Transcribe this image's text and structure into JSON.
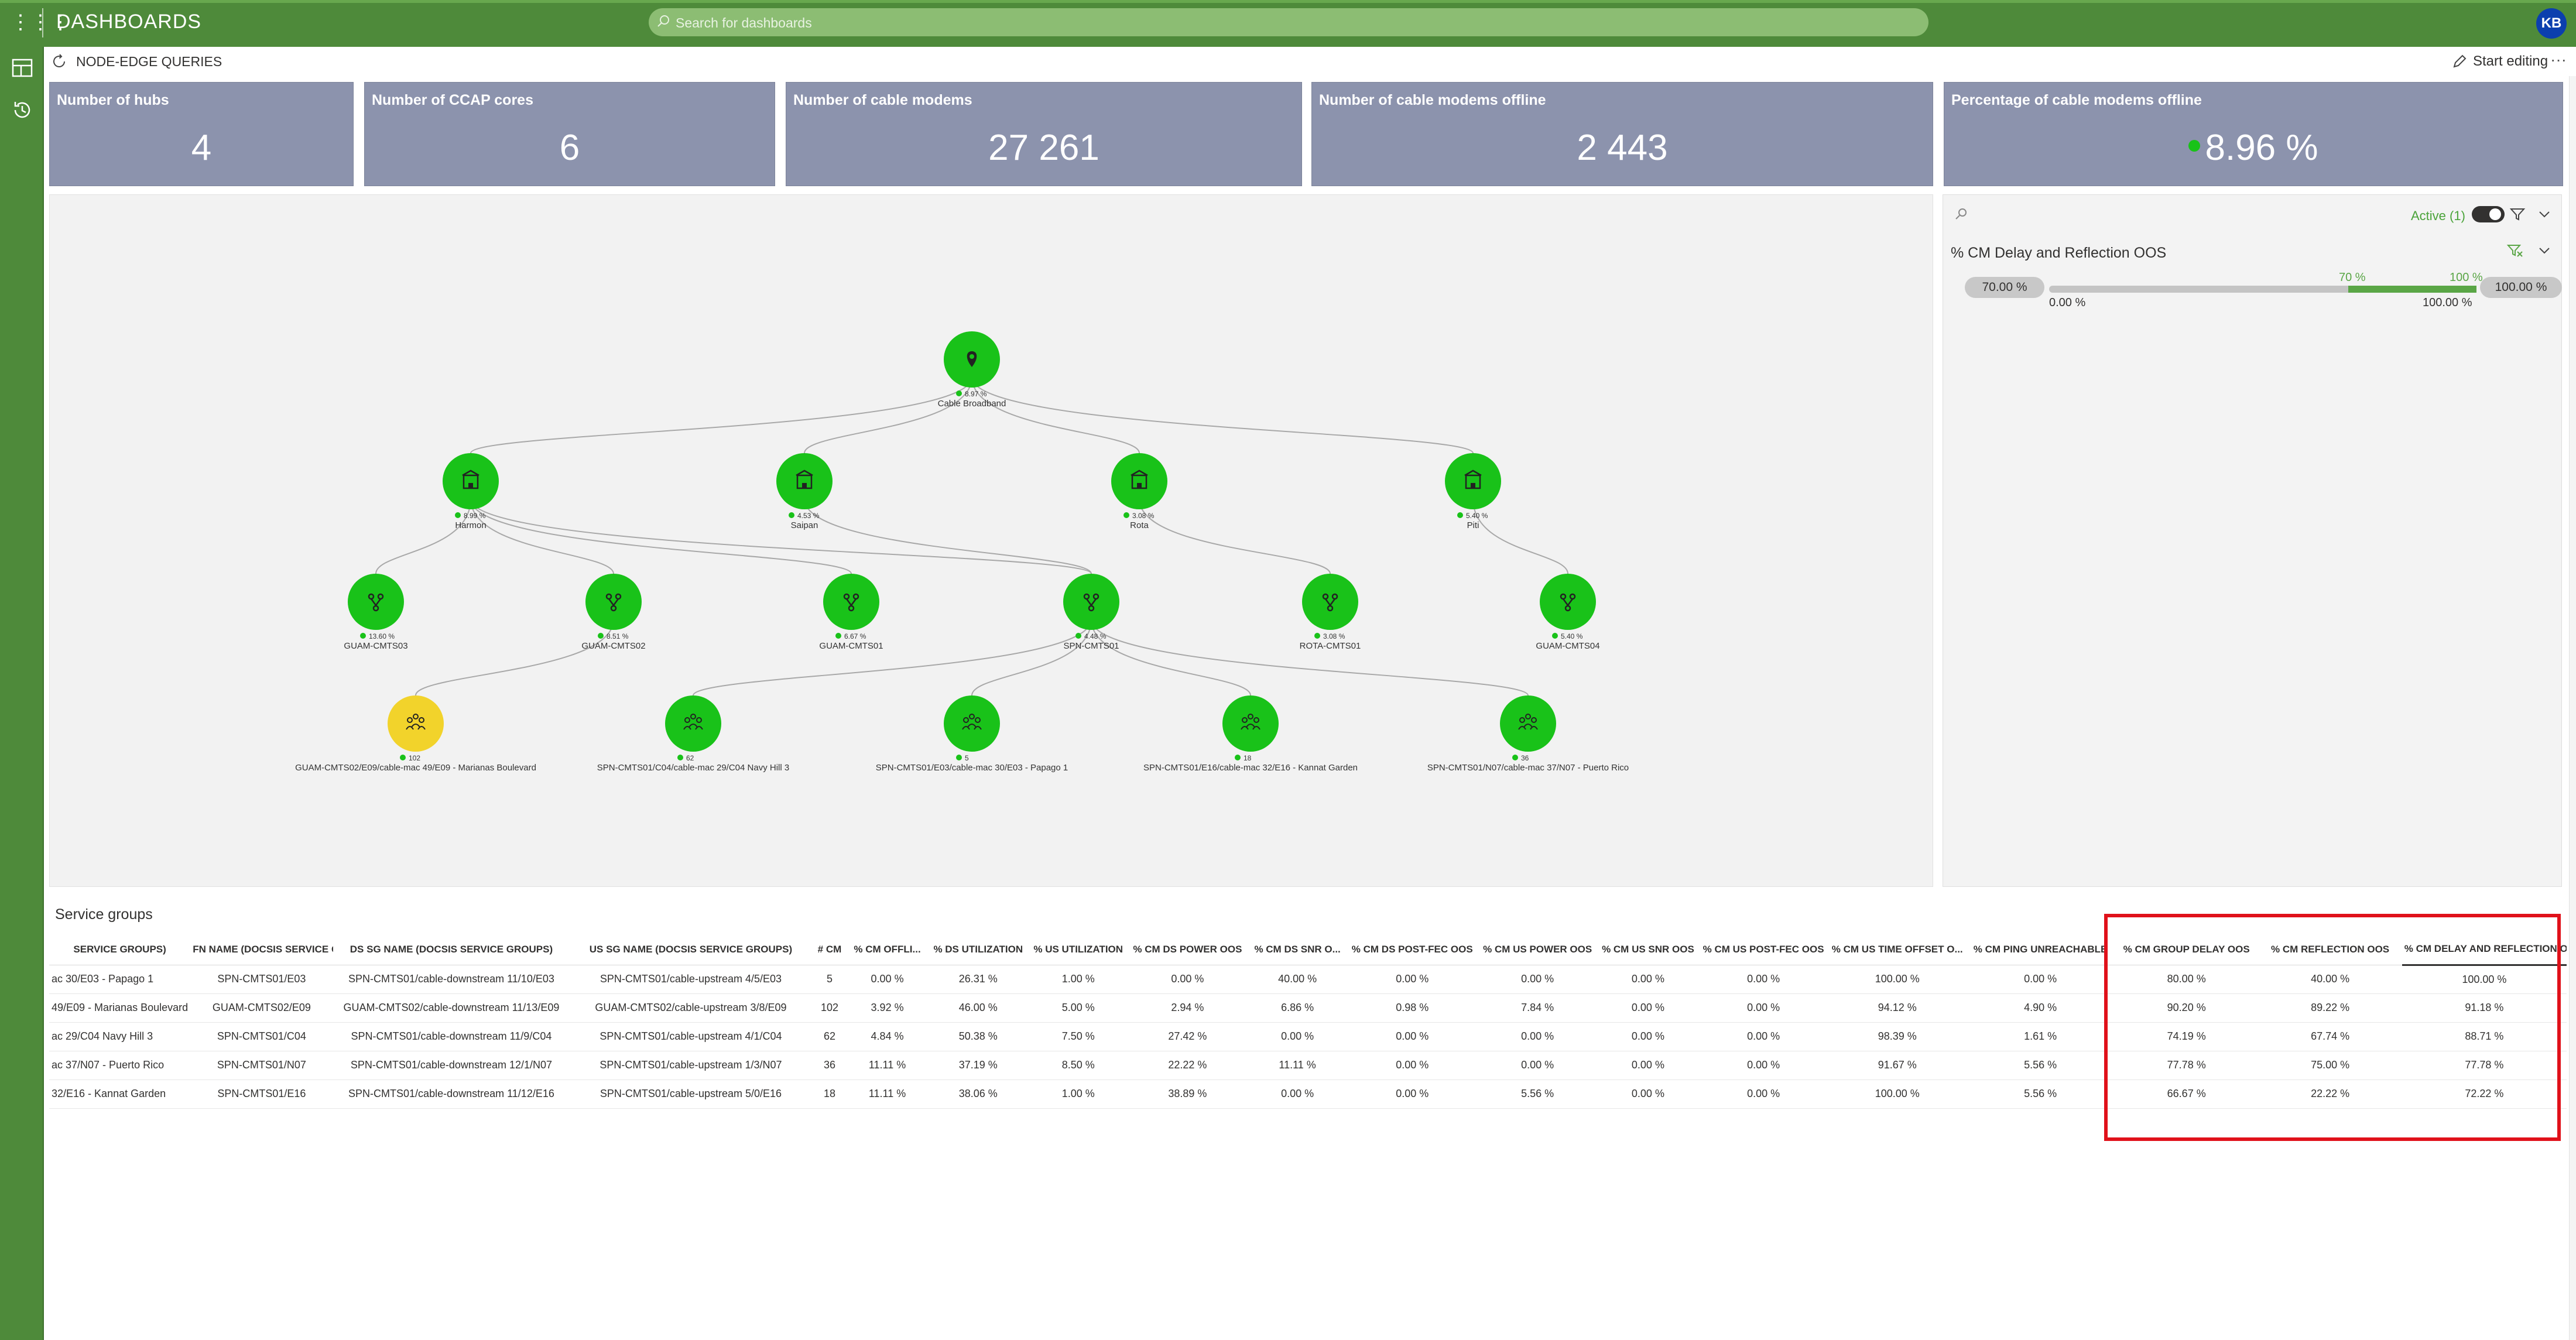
{
  "app": {
    "title": "DASHBOARDS",
    "search_placeholder": "Search for dashboards",
    "user_initials": "KB"
  },
  "page": {
    "title": "NODE-EDGE QUERIES",
    "start_editing": "Start editing",
    "more": "···"
  },
  "kpis": [
    {
      "label": "Number of hubs",
      "value": "4"
    },
    {
      "label": "Number of CCAP cores",
      "value": "6"
    },
    {
      "label": "Number of cable modems",
      "value": "27 261"
    },
    {
      "label": "Number of cable modems offline",
      "value": "2 443"
    },
    {
      "label": "Percentage of cable modems offline",
      "value": "8.96 %"
    }
  ],
  "graph": {
    "root": {
      "label": "Cable Broadband",
      "pct": "8.97 %"
    },
    "hubs": [
      {
        "label": "Harmon",
        "pct": "8.99 %"
      },
      {
        "label": "Saipan",
        "pct": "4.53 %"
      },
      {
        "label": "Rota",
        "pct": "3.08 %"
      },
      {
        "label": "Piti",
        "pct": "5.40 %"
      }
    ],
    "cores": [
      {
        "label": "GUAM-CMTS03",
        "pct": "13.60 %"
      },
      {
        "label": "GUAM-CMTS02",
        "pct": "8.51 %"
      },
      {
        "label": "GUAM-CMTS01",
        "pct": "6.67 %"
      },
      {
        "label": "SPN-CMTS01",
        "pct": "4.48 %"
      },
      {
        "label": "ROTA-CMTS01",
        "pct": "3.08 %"
      },
      {
        "label": "GUAM-CMTS04",
        "pct": "5.40 %"
      }
    ],
    "groups": [
      {
        "label": "GUAM-CMTS02/E09/cable-mac 49/E09 - Marianas Boulevard",
        "count": "102",
        "status": "warning"
      },
      {
        "label": "SPN-CMTS01/C04/cable-mac 29/C04 Navy Hill 3",
        "count": "62",
        "status": "ok"
      },
      {
        "label": "SPN-CMTS01/E03/cable-mac 30/E03 - Papago 1",
        "count": "5",
        "status": "ok"
      },
      {
        "label": "SPN-CMTS01/E16/cable-mac 32/E16 - Kannat Garden",
        "count": "18",
        "status": "ok"
      },
      {
        "label": "SPN-CMTS01/N07/cable-mac 37/N07 - Puerto Rico",
        "count": "36",
        "status": "ok"
      }
    ]
  },
  "filter": {
    "active_label": "Active (1)",
    "section_title": "% CM Delay and Reflection OOS",
    "min_pill": "70.00 %",
    "max_pill": "100.00 %",
    "handle_low": "70 %",
    "handle_high": "100 %",
    "range_min": "0.00 %",
    "range_max": "100.00 %",
    "range_low_value": 70,
    "range_high_value": 100
  },
  "table": {
    "title": "Service groups",
    "headers": [
      "SERVICE GROUPS)",
      "FN NAME (DOCSIS SERVICE GROU...",
      "DS SG NAME (DOCSIS SERVICE GROUPS)",
      "US SG NAME (DOCSIS SERVICE GROUPS)",
      "# CM",
      "% CM OFFLI...",
      "% DS UTILIZATION",
      "% US UTILIZATION",
      "% CM DS POWER OOS",
      "% CM DS SNR O...",
      "% CM DS POST-FEC OOS",
      "% CM US POWER OOS",
      "% CM US SNR OOS",
      "% CM US POST-FEC OOS",
      "% CM US TIME OFFSET O...",
      "% CM PING UNREACHABLE",
      "% CM GROUP DELAY OOS",
      "% CM REFLECTION OOS",
      "% CM DELAY AND REFLECTION OOS"
    ],
    "rows": [
      [
        "ac 30/E03 - Papago 1",
        "SPN-CMTS01/E03",
        "SPN-CMTS01/cable-downstream 11/10/E03",
        "SPN-CMTS01/cable-upstream 4/5/E03",
        "5",
        "0.00 %",
        "26.31 %",
        "1.00 %",
        "0.00 %",
        "40.00 %",
        "0.00 %",
        "0.00 %",
        "0.00 %",
        "0.00 %",
        "100.00 %",
        "0.00 %",
        "80.00 %",
        "40.00 %",
        "100.00 %"
      ],
      [
        "49/E09 - Marianas Boulevard",
        "GUAM-CMTS02/E09",
        "GUAM-CMTS02/cable-downstream 11/13/E09",
        "GUAM-CMTS02/cable-upstream 3/8/E09",
        "102",
        "3.92 %",
        "46.00 %",
        "5.00 %",
        "2.94 %",
        "6.86 %",
        "0.98 %",
        "7.84 %",
        "0.00 %",
        "0.00 %",
        "94.12 %",
        "4.90 %",
        "90.20 %",
        "89.22 %",
        "91.18 %"
      ],
      [
        "ac 29/C04 Navy Hill 3",
        "SPN-CMTS01/C04",
        "SPN-CMTS01/cable-downstream 11/9/C04",
        "SPN-CMTS01/cable-upstream 4/1/C04",
        "62",
        "4.84 %",
        "50.38 %",
        "7.50 %",
        "27.42 %",
        "0.00 %",
        "0.00 %",
        "0.00 %",
        "0.00 %",
        "0.00 %",
        "98.39 %",
        "1.61 %",
        "74.19 %",
        "67.74 %",
        "88.71 %"
      ],
      [
        "ac 37/N07 - Puerto Rico",
        "SPN-CMTS01/N07",
        "SPN-CMTS01/cable-downstream 12/1/N07",
        "SPN-CMTS01/cable-upstream 1/3/N07",
        "36",
        "11.11 %",
        "37.19 %",
        "8.50 %",
        "22.22 %",
        "11.11 %",
        "0.00 %",
        "0.00 %",
        "0.00 %",
        "0.00 %",
        "91.67 %",
        "5.56 %",
        "77.78 %",
        "75.00 %",
        "77.78 %"
      ],
      [
        "32/E16 - Kannat Garden",
        "SPN-CMTS01/E16",
        "SPN-CMTS01/cable-downstream 11/12/E16",
        "SPN-CMTS01/cable-upstream 5/0/E16",
        "18",
        "11.11 %",
        "38.06 %",
        "1.00 %",
        "38.89 %",
        "0.00 %",
        "0.00 %",
        "5.56 %",
        "0.00 %",
        "0.00 %",
        "100.00 %",
        "5.56 %",
        "66.67 %",
        "22.22 %",
        "72.22 %"
      ]
    ]
  },
  "colors": {
    "brand_green": "#4e8a3a",
    "kpi_bg": "#8c93ad",
    "node_ok": "#19c219",
    "node_warning": "#f2d32b",
    "highlight": "#e0111a"
  }
}
